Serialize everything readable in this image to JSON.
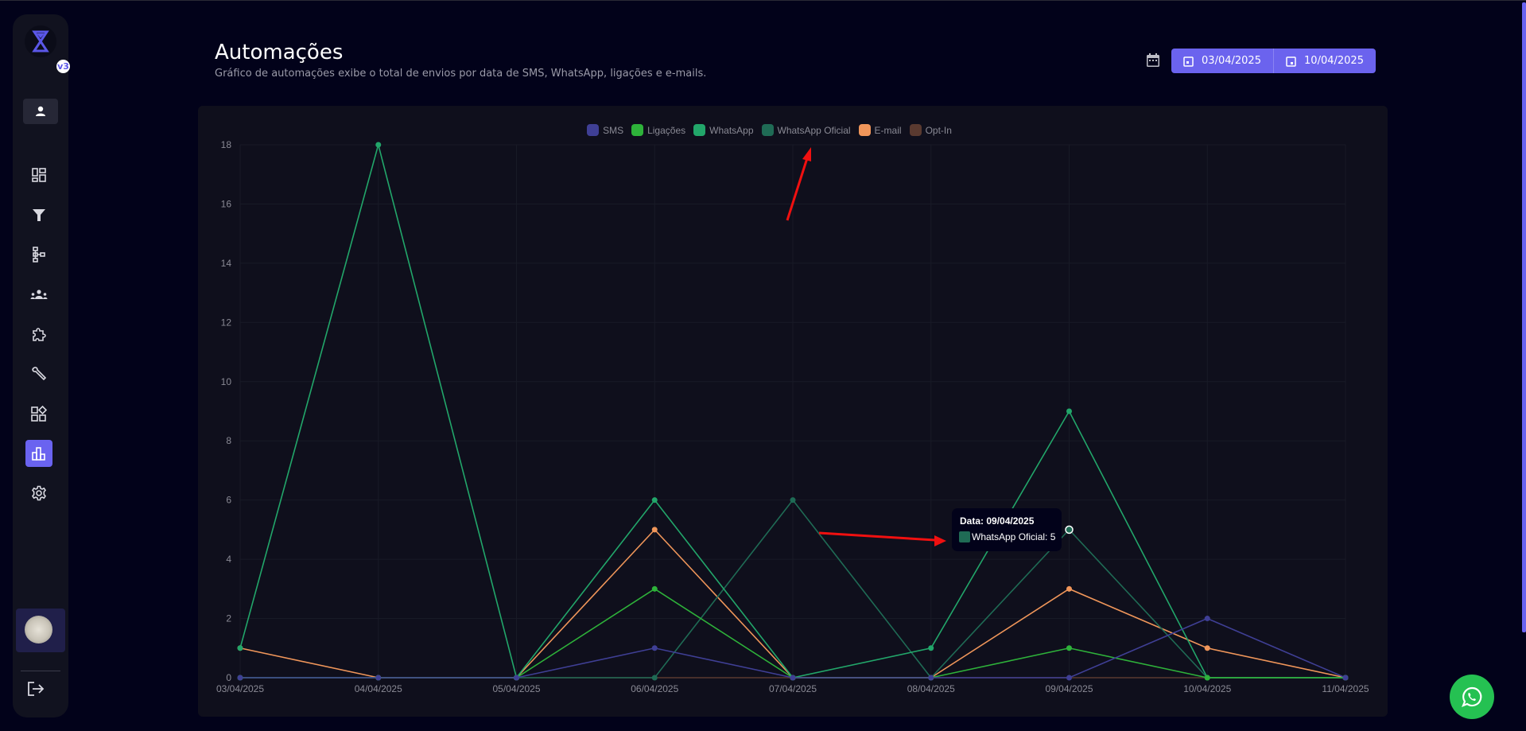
{
  "sidebar": {
    "logo_badge": "v3",
    "items": [
      {
        "icon": "dashboard-icon",
        "active": false
      },
      {
        "icon": "filter-icon",
        "active": false
      },
      {
        "icon": "hierarchy-icon",
        "active": false
      },
      {
        "icon": "groups-icon",
        "active": false
      },
      {
        "icon": "puzzle-icon",
        "active": false
      },
      {
        "icon": "wrench-icon",
        "active": false
      },
      {
        "icon": "widgets-icon",
        "active": false
      },
      {
        "icon": "bar-chart-icon",
        "active": true
      },
      {
        "icon": "gear-icon",
        "active": false
      }
    ],
    "accent": "#6a63f0"
  },
  "header": {
    "title": "Automações",
    "subtitle": "Gráfico de automações exibe o total de envios por data de SMS, WhatsApp, ligações e e-mails.",
    "date_start": "03/04/2025",
    "date_end": "10/04/2025"
  },
  "tooltip": {
    "title": "Data: 09/04/2025",
    "line": "WhatsApp Oficial: 5"
  },
  "chart_data": {
    "type": "line",
    "title": "",
    "xlabel": "",
    "ylabel": "",
    "ylim": [
      0,
      18
    ],
    "yticks": [
      0,
      2,
      4,
      6,
      8,
      10,
      12,
      14,
      16,
      18
    ],
    "grid": true,
    "legend_position": "top-center",
    "categories": [
      "03/04/2025",
      "04/04/2025",
      "05/04/2025",
      "06/04/2025",
      "07/04/2025",
      "08/04/2025",
      "09/04/2025",
      "10/04/2025",
      "11/04/2025"
    ],
    "series": [
      {
        "name": "SMS",
        "color": "#3f3f95",
        "values": [
          0,
          0,
          0,
          1,
          0,
          0,
          0,
          2,
          0
        ]
      },
      {
        "name": "Ligações",
        "color": "#2eb23a",
        "values": [
          0,
          0,
          0,
          3,
          0,
          0,
          1,
          0,
          0
        ]
      },
      {
        "name": "WhatsApp",
        "color": "#22a66a",
        "values": [
          1,
          18,
          0,
          6,
          0,
          1,
          9,
          0,
          0
        ]
      },
      {
        "name": "WhatsApp Oficial",
        "color": "#1f6b55",
        "values": [
          0,
          0,
          0,
          0,
          6,
          0,
          5,
          0,
          0
        ]
      },
      {
        "name": "E-mail",
        "color": "#f0965a",
        "values": [
          1,
          0,
          0,
          5,
          0,
          0,
          3,
          1,
          0
        ]
      },
      {
        "name": "Opt-In",
        "color": "#5a3a30",
        "values": [
          0,
          0,
          0,
          0,
          0,
          0,
          0,
          0,
          0
        ]
      }
    ]
  }
}
